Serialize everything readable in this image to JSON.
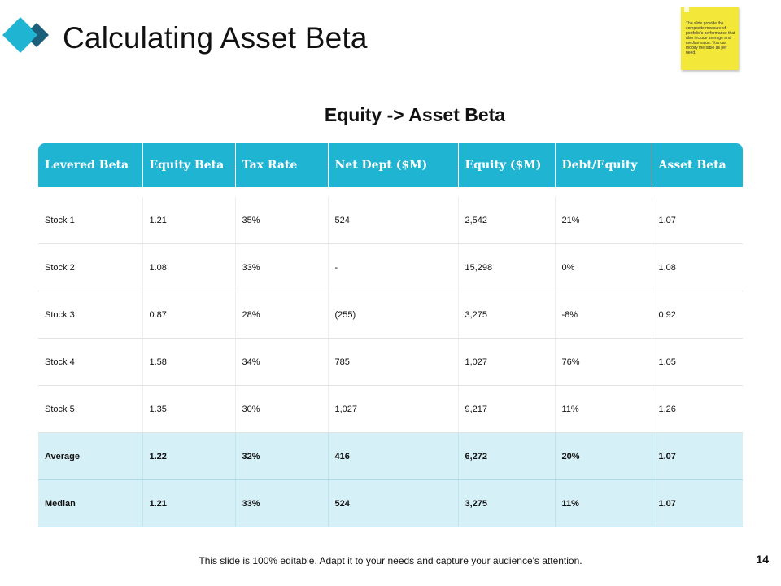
{
  "header": {
    "title": "Calculating Asset Beta",
    "sticky_note": "The slide provide the composite measure of portfolio's performance that also include average and median value. You can modify the table as per need."
  },
  "subtitle": "Equity -> Asset Beta",
  "colors": {
    "accent": "#1fb4d2",
    "summary_fill": "#d6f0f7",
    "logo_light": "#1fb4d2",
    "logo_dark": "#1b5f7a",
    "sticky": "#f3e83a"
  },
  "table": {
    "headers": [
      "Levered Beta",
      "Equity Beta",
      "Tax Rate",
      "Net Dept ($M)",
      "Equity ($M)",
      "Debt/Equity",
      "Asset Beta"
    ],
    "rows": [
      [
        "Stock 1",
        "1.21",
        "35%",
        "524",
        "2,542",
        "21%",
        "1.07"
      ],
      [
        "Stock 2",
        "1.08",
        "33%",
        "-",
        "15,298",
        "0%",
        "1.08"
      ],
      [
        "Stock 3",
        "0.87",
        "28%",
        "(255)",
        "3,275",
        "-8%",
        "0.92"
      ],
      [
        "Stock 4",
        "1.58",
        "34%",
        "785",
        "1,027",
        "76%",
        "1.05"
      ],
      [
        "Stock 5",
        "1.35",
        "30%",
        "1,027",
        "9,217",
        "11%",
        "1.26"
      ]
    ],
    "summary_rows": [
      [
        "Average",
        "1.22",
        "32%",
        "416",
        "6,272",
        "20%",
        "1.07"
      ],
      [
        "Median",
        "1.21",
        "33%",
        "524",
        "3,275",
        "11%",
        "1.07"
      ]
    ]
  },
  "footer": {
    "text": "This slide is 100% editable. Adapt it to your needs and capture your audience's attention.",
    "page_number": "14"
  }
}
